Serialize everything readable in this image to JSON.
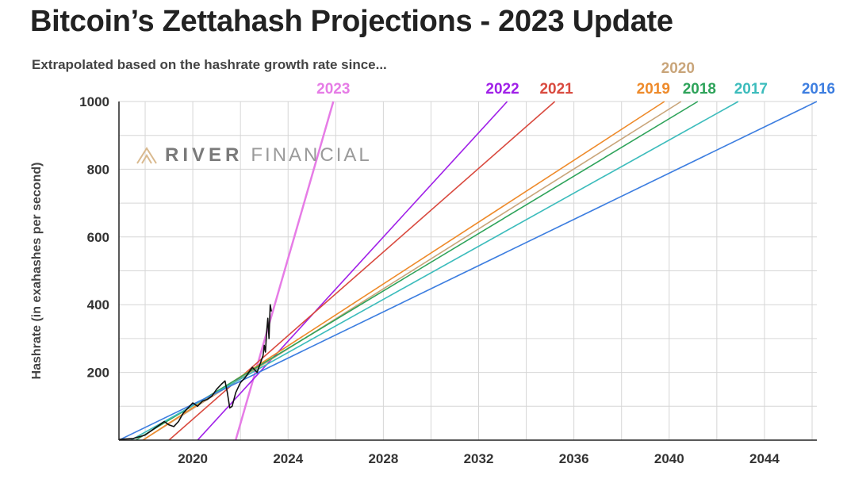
{
  "header": {
    "title": "Bitcoin’s Zettahash Projections - 2023 Update",
    "subtitle": "Extrapolated based on the hashrate growth rate since..."
  },
  "watermark": {
    "word1": "RIVER",
    "word2": "FINANCIAL",
    "logo_icon": "river-chevron-logo"
  },
  "chart_data": {
    "type": "line",
    "title": "Bitcoin’s Zettahash Projections - 2023 Update",
    "subtitle": "Extrapolated based on the hashrate growth rate since...",
    "xlabel": "",
    "ylabel": "Hashrate (in exahashes per second)",
    "xlim": [
      2016.9,
      2046.2
    ],
    "ylim": [
      0,
      1000
    ],
    "x_ticks": [
      2020,
      2024,
      2028,
      2032,
      2036,
      2040,
      2044
    ],
    "y_ticks": [
      200,
      400,
      600,
      800,
      1000
    ],
    "grid": true,
    "legend": "labels at line ends above plot",
    "projections": [
      {
        "name": "2023",
        "color": "#e67ce6",
        "points": [
          [
            2021.8,
            0
          ],
          [
            2025.9,
            1000
          ]
        ]
      },
      {
        "name": "2022",
        "color": "#a020e8",
        "points": [
          [
            2020.2,
            0
          ],
          [
            2033.2,
            1000
          ]
        ]
      },
      {
        "name": "2021",
        "color": "#d94a3f",
        "points": [
          [
            2019.0,
            0
          ],
          [
            2035.2,
            1000
          ]
        ]
      },
      {
        "name": "2020",
        "color": "#c9a57a",
        "points": [
          [
            2017.9,
            0
          ],
          [
            2040.5,
            1000
          ]
        ]
      },
      {
        "name": "2019",
        "color": "#ee8a2a",
        "points": [
          [
            2017.9,
            0
          ],
          [
            2039.8,
            1000
          ]
        ]
      },
      {
        "name": "2018",
        "color": "#2ea35a",
        "points": [
          [
            2017.6,
            0
          ],
          [
            2041.2,
            1000
          ]
        ]
      },
      {
        "name": "2017",
        "color": "#3cbcbc",
        "points": [
          [
            2017.4,
            0
          ],
          [
            2042.9,
            1000
          ]
        ]
      },
      {
        "name": "2016",
        "color": "#3d7ee0",
        "points": [
          [
            2016.9,
            0
          ],
          [
            2046.2,
            1000
          ]
        ]
      }
    ],
    "actual": {
      "name": "Hashrate",
      "color": "#111111",
      "points": [
        [
          2016.9,
          2
        ],
        [
          2017.5,
          5
        ],
        [
          2018.0,
          15
        ],
        [
          2018.3,
          30
        ],
        [
          2018.6,
          45
        ],
        [
          2018.8,
          55
        ],
        [
          2019.0,
          45
        ],
        [
          2019.2,
          40
        ],
        [
          2019.4,
          55
        ],
        [
          2019.6,
          80
        ],
        [
          2019.8,
          95
        ],
        [
          2020.0,
          110
        ],
        [
          2020.2,
          100
        ],
        [
          2020.4,
          115
        ],
        [
          2020.6,
          120
        ],
        [
          2020.8,
          130
        ],
        [
          2021.0,
          150
        ],
        [
          2021.2,
          165
        ],
        [
          2021.35,
          175
        ],
        [
          2021.45,
          140
        ],
        [
          2021.55,
          95
        ],
        [
          2021.65,
          100
        ],
        [
          2021.8,
          140
        ],
        [
          2022.0,
          170
        ],
        [
          2022.2,
          185
        ],
        [
          2022.4,
          205
        ],
        [
          2022.5,
          215
        ],
        [
          2022.7,
          200
        ],
        [
          2022.85,
          230
        ],
        [
          2022.95,
          250
        ],
        [
          2023.0,
          280
        ],
        [
          2023.05,
          260
        ],
        [
          2023.1,
          320
        ],
        [
          2023.15,
          360
        ],
        [
          2023.2,
          300
        ],
        [
          2023.25,
          400
        ],
        [
          2023.3,
          380
        ]
      ]
    }
  }
}
